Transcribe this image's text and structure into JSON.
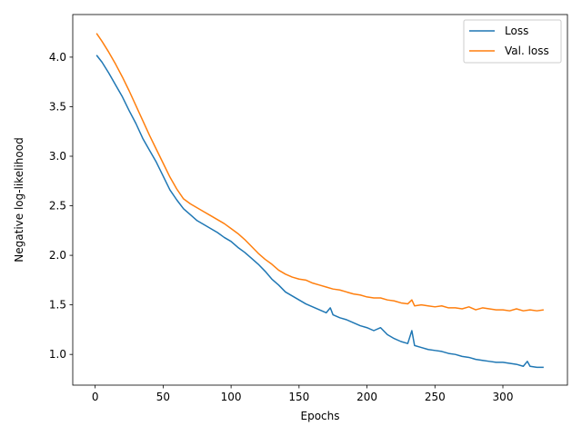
{
  "chart_data": {
    "type": "line",
    "title": "",
    "xlabel": "Epochs",
    "ylabel": "Negative log-likelihood",
    "xlim": [
      -16.5,
      347.5
    ],
    "ylim": [
      0.69,
      4.43
    ],
    "xticks": [
      0,
      50,
      100,
      150,
      200,
      250,
      300
    ],
    "yticks": [
      1.0,
      1.5,
      2.0,
      2.5,
      3.0,
      3.5,
      4.0
    ],
    "grid": false,
    "legend_position": "top-right",
    "series": [
      {
        "name": "Loss",
        "color": "#1f77b4",
        "points": [
          [
            1,
            4.02
          ],
          [
            5,
            3.95
          ],
          [
            10,
            3.84
          ],
          [
            15,
            3.72
          ],
          [
            20,
            3.6
          ],
          [
            25,
            3.46
          ],
          [
            30,
            3.33
          ],
          [
            35,
            3.18
          ],
          [
            40,
            3.06
          ],
          [
            45,
            2.94
          ],
          [
            50,
            2.8
          ],
          [
            55,
            2.66
          ],
          [
            60,
            2.56
          ],
          [
            65,
            2.47
          ],
          [
            70,
            2.41
          ],
          [
            75,
            2.35
          ],
          [
            80,
            2.31
          ],
          [
            85,
            2.27
          ],
          [
            90,
            2.23
          ],
          [
            95,
            2.18
          ],
          [
            100,
            2.14
          ],
          [
            105,
            2.08
          ],
          [
            110,
            2.03
          ],
          [
            115,
            1.97
          ],
          [
            120,
            1.91
          ],
          [
            125,
            1.84
          ],
          [
            130,
            1.76
          ],
          [
            135,
            1.7
          ],
          [
            140,
            1.63
          ],
          [
            145,
            1.59
          ],
          [
            150,
            1.55
          ],
          [
            155,
            1.51
          ],
          [
            160,
            1.48
          ],
          [
            165,
            1.45
          ],
          [
            170,
            1.42
          ],
          [
            173,
            1.47
          ],
          [
            175,
            1.4
          ],
          [
            180,
            1.37
          ],
          [
            185,
            1.35
          ],
          [
            190,
            1.32
          ],
          [
            195,
            1.29
          ],
          [
            200,
            1.27
          ],
          [
            205,
            1.24
          ],
          [
            210,
            1.27
          ],
          [
            215,
            1.2
          ],
          [
            220,
            1.16
          ],
          [
            225,
            1.13
          ],
          [
            230,
            1.11
          ],
          [
            233,
            1.24
          ],
          [
            235,
            1.09
          ],
          [
            240,
            1.07
          ],
          [
            245,
            1.05
          ],
          [
            250,
            1.04
          ],
          [
            255,
            1.03
          ],
          [
            260,
            1.01
          ],
          [
            265,
            1.0
          ],
          [
            270,
            0.98
          ],
          [
            275,
            0.97
          ],
          [
            280,
            0.95
          ],
          [
            285,
            0.94
          ],
          [
            290,
            0.93
          ],
          [
            295,
            0.92
          ],
          [
            300,
            0.92
          ],
          [
            305,
            0.91
          ],
          [
            310,
            0.9
          ],
          [
            315,
            0.88
          ],
          [
            318,
            0.93
          ],
          [
            320,
            0.88
          ],
          [
            325,
            0.87
          ],
          [
            330,
            0.87
          ]
        ]
      },
      {
        "name": "Val. loss",
        "color": "#ff7f0e",
        "points": [
          [
            1,
            4.24
          ],
          [
            5,
            4.16
          ],
          [
            10,
            4.05
          ],
          [
            15,
            3.93
          ],
          [
            20,
            3.8
          ],
          [
            25,
            3.66
          ],
          [
            30,
            3.51
          ],
          [
            35,
            3.36
          ],
          [
            40,
            3.21
          ],
          [
            45,
            3.07
          ],
          [
            50,
            2.93
          ],
          [
            55,
            2.79
          ],
          [
            60,
            2.67
          ],
          [
            65,
            2.57
          ],
          [
            70,
            2.52
          ],
          [
            75,
            2.48
          ],
          [
            80,
            2.44
          ],
          [
            85,
            2.4
          ],
          [
            90,
            2.36
          ],
          [
            95,
            2.32
          ],
          [
            100,
            2.27
          ],
          [
            105,
            2.22
          ],
          [
            110,
            2.16
          ],
          [
            115,
            2.09
          ],
          [
            120,
            2.02
          ],
          [
            125,
            1.96
          ],
          [
            130,
            1.91
          ],
          [
            135,
            1.85
          ],
          [
            140,
            1.81
          ],
          [
            145,
            1.78
          ],
          [
            150,
            1.76
          ],
          [
            155,
            1.75
          ],
          [
            160,
            1.72
          ],
          [
            165,
            1.7
          ],
          [
            170,
            1.68
          ],
          [
            175,
            1.66
          ],
          [
            180,
            1.65
          ],
          [
            185,
            1.63
          ],
          [
            190,
            1.61
          ],
          [
            195,
            1.6
          ],
          [
            200,
            1.58
          ],
          [
            205,
            1.57
          ],
          [
            210,
            1.57
          ],
          [
            215,
            1.55
          ],
          [
            220,
            1.54
          ],
          [
            225,
            1.52
          ],
          [
            230,
            1.51
          ],
          [
            233,
            1.55
          ],
          [
            235,
            1.49
          ],
          [
            240,
            1.5
          ],
          [
            245,
            1.49
          ],
          [
            250,
            1.48
          ],
          [
            255,
            1.49
          ],
          [
            260,
            1.47
          ],
          [
            265,
            1.47
          ],
          [
            270,
            1.46
          ],
          [
            275,
            1.48
          ],
          [
            280,
            1.45
          ],
          [
            285,
            1.47
          ],
          [
            290,
            1.46
          ],
          [
            295,
            1.45
          ],
          [
            300,
            1.45
          ],
          [
            305,
            1.44
          ],
          [
            310,
            1.46
          ],
          [
            315,
            1.44
          ],
          [
            320,
            1.45
          ],
          [
            325,
            1.44
          ],
          [
            330,
            1.45
          ]
        ]
      }
    ]
  }
}
